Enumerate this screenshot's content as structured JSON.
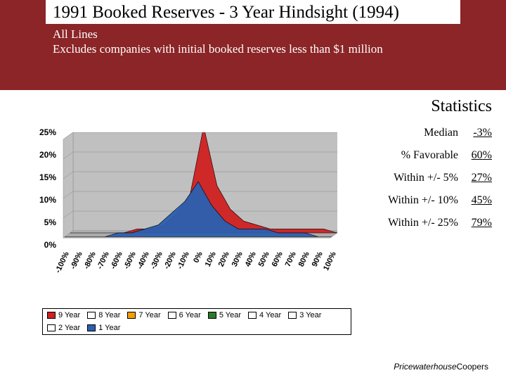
{
  "header": {
    "title_year": "1991",
    "title_rest": "Booked Reserves - 3 Year Hindsight (1994)",
    "subtitle_line1": "All Lines",
    "subtitle_line2": "Excludes companies with initial booked reserves less than $1 million",
    "bg_color": "#8b2527"
  },
  "stats": {
    "heading": "Statistics",
    "rows": [
      {
        "label": "Median",
        "value": "-3%"
      },
      {
        "label": "% Favorable",
        "value": "60%"
      },
      {
        "label": "Within +/- 5%",
        "value": "27%"
      },
      {
        "label": "Within +/- 10%",
        "value": "45%"
      },
      {
        "label": "Within +/- 25%",
        "value": "79%"
      }
    ]
  },
  "chart": {
    "type": "area-3d-stacked-look",
    "ylim": [
      0,
      25
    ],
    "yticks": [
      "0%",
      "5%",
      "10%",
      "15%",
      "20%",
      "25%"
    ],
    "xcategories": [
      "-100%",
      "-90%",
      "-80%",
      "-70%",
      "-60%",
      "-50%",
      "-40%",
      "-30%",
      "-20%",
      "-10%",
      "0%",
      "10%",
      "20%",
      "30%",
      "40%",
      "50%",
      "60%",
      "70%",
      "80%",
      "90%",
      "100%"
    ],
    "back_panel_color": "#c0c0c0",
    "grid_color": "#888888",
    "series_red": {
      "name": "9 Year",
      "color": "#d02020",
      "values": [
        0,
        0,
        0,
        0,
        0,
        1,
        1,
        2,
        5,
        10,
        27,
        12,
        6,
        3,
        2,
        1,
        1,
        1,
        1,
        1,
        0
      ]
    },
    "series_blue": {
      "name": "1 Year",
      "color": "#2a5fb0",
      "values": [
        0,
        0,
        0,
        0,
        1,
        1,
        2,
        3,
        6,
        9,
        14,
        8,
        4,
        2,
        2,
        2,
        1,
        1,
        1,
        0,
        0
      ]
    },
    "legend": [
      {
        "label": "9 Year",
        "color": "#d02020"
      },
      {
        "label": "8 Year",
        "color": "#ffffff"
      },
      {
        "label": "7 Year",
        "color": "#f0a000"
      },
      {
        "label": "6 Year",
        "color": "#ffffff"
      },
      {
        "label": "5 Year",
        "color": "#2a7a2a"
      },
      {
        "label": "4 Year",
        "color": "#ffffff"
      },
      {
        "label": "3 Year",
        "color": "#ffffff"
      },
      {
        "label": "2 Year",
        "color": "#ffffff"
      },
      {
        "label": "1 Year",
        "color": "#2a5fb0"
      }
    ]
  },
  "footer": {
    "brand1": "Pricewaterhouse",
    "brand2": "Coopers"
  }
}
